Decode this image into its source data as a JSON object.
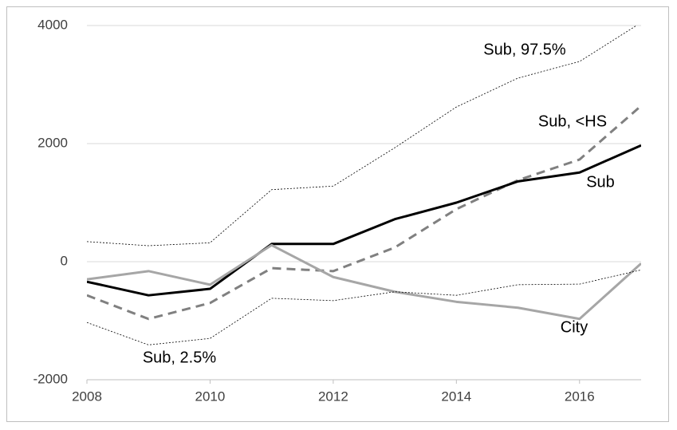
{
  "chart_data": {
    "type": "line",
    "x": [
      2008,
      2009,
      2010,
      2011,
      2012,
      2013,
      2014,
      2015,
      2016,
      2017
    ],
    "xlim": [
      2008,
      2017
    ],
    "xticks": [
      2008,
      2010,
      2012,
      2014,
      2016
    ],
    "ylim": [
      -2000,
      4000
    ],
    "yticks": [
      -2000,
      0,
      2000,
      4000
    ],
    "grid": true,
    "series": [
      {
        "name": "Sub, 97.5%",
        "color": "#000000",
        "style": "dotted",
        "values": [
          340,
          270,
          320,
          1220,
          1280,
          1930,
          2620,
          3110,
          3390,
          4050
        ]
      },
      {
        "name": "Sub, <HS",
        "color": "#808080",
        "style": "dashed",
        "values": [
          -570,
          -970,
          -700,
          -110,
          -160,
          240,
          890,
          1380,
          1730,
          2640
        ]
      },
      {
        "name": "Sub",
        "color": "#000000",
        "style": "solid",
        "values": [
          -340,
          -570,
          -460,
          300,
          300,
          720,
          1000,
          1360,
          1510,
          1970
        ]
      },
      {
        "name": "City",
        "color": "#a6a6a6",
        "style": "solid",
        "values": [
          -300,
          -160,
          -390,
          280,
          -260,
          -510,
          -680,
          -780,
          -970,
          -30
        ]
      },
      {
        "name": "Sub, 2.5%",
        "color": "#000000",
        "style": "dotted",
        "values": [
          -1030,
          -1410,
          -1300,
          -620,
          -660,
          -510,
          -570,
          -390,
          -380,
          -140
        ]
      }
    ]
  }
}
